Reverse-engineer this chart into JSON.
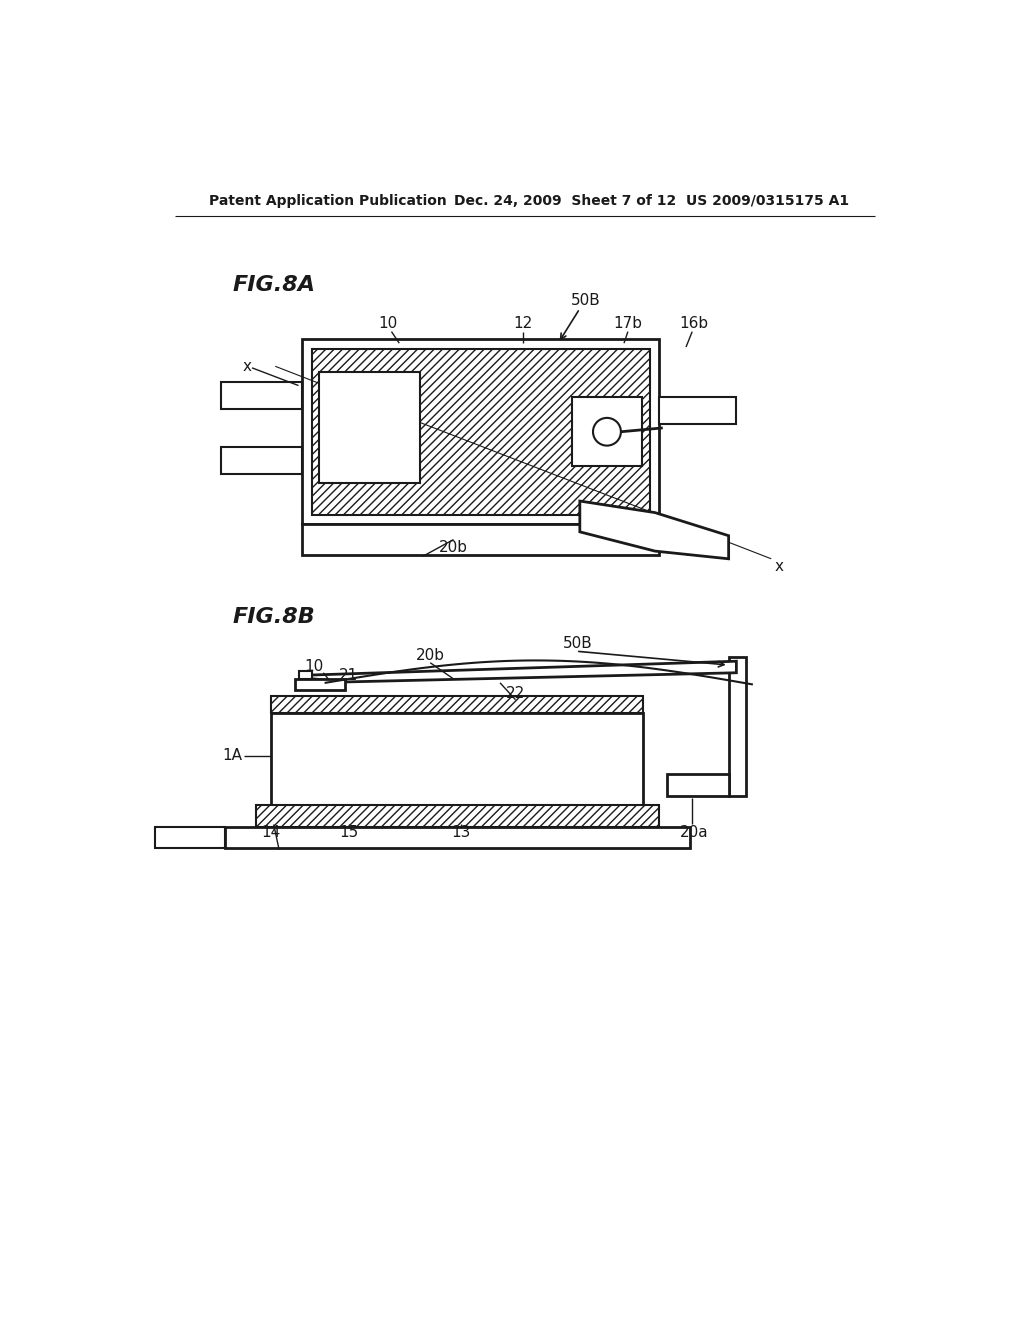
{
  "background_color": "#ffffff",
  "header_left": "Patent Application Publication",
  "header_center": "Dec. 24, 2009  Sheet 7 of 12",
  "header_right": "US 2009/0315175 A1",
  "fig8a_label": "FIG.8A",
  "fig8b_label": "FIG.8B",
  "line_color": "#1a1a1a",
  "label_color": "#1a1a1a"
}
